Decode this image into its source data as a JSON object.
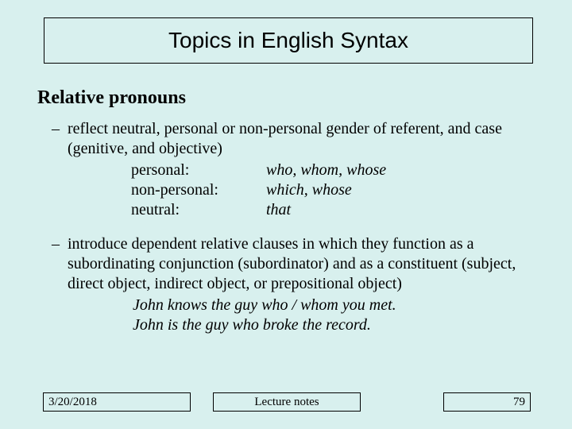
{
  "colors": {
    "background": "#d8f0ee",
    "text": "#000000",
    "border": "#000000"
  },
  "title": "Topics in English Syntax",
  "section": "Relative pronouns",
  "bullets": [
    {
      "dash": "–",
      "text": "reflect neutral, personal or non-personal gender of referent, and case (genitive, and objective)",
      "definitions": [
        {
          "label": "personal:",
          "value": "who, whom, whose"
        },
        {
          "label": "non-personal:",
          "value": "which, whose"
        },
        {
          "label": "neutral:",
          "value": "that"
        }
      ]
    },
    {
      "dash": "–",
      "text": "introduce dependent relative clauses in which they function as a subordinating conjunction (subordinator) and as a constituent (subject, direct object, indirect object, or prepositional object)",
      "examples": [
        "John knows the guy who / whom you met.",
        "John is the guy who broke the record."
      ]
    }
  ],
  "footer": {
    "date": "3/20/2018",
    "center": "Lecture notes",
    "page": "79"
  }
}
